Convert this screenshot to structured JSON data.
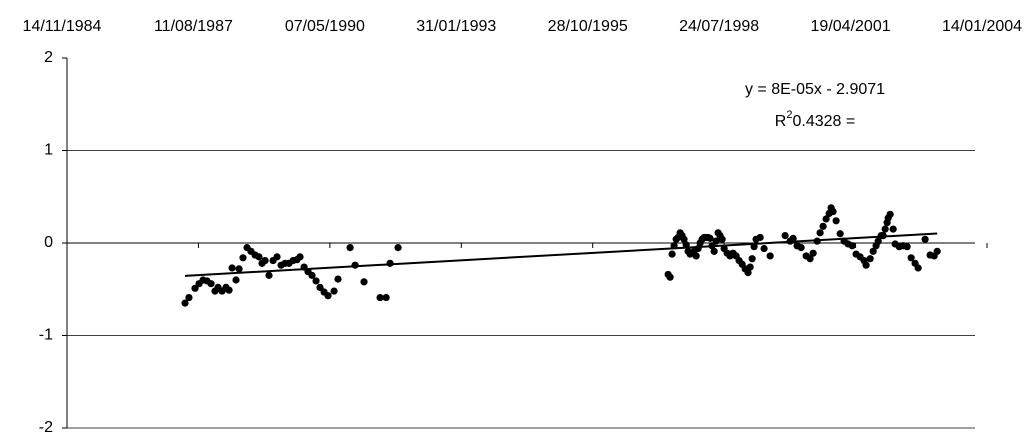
{
  "chart_data": {
    "type": "scatter",
    "color": "#000000",
    "xlim": [
      31000,
      38000
    ],
    "xticks": [
      {
        "value": 31000,
        "label": "14/11/1984"
      },
      {
        "value": 32000,
        "label": "11/08/1987"
      },
      {
        "value": 33000,
        "label": "07/05/1990"
      },
      {
        "value": 34000,
        "label": "31/01/1993"
      },
      {
        "value": 35000,
        "label": "28/10/1995"
      },
      {
        "value": 36000,
        "label": "24/07/1998"
      },
      {
        "value": 37000,
        "label": "19/04/2001"
      },
      {
        "value": 38000,
        "label": "14/01/2004"
      }
    ],
    "ylim": [
      -2,
      2
    ],
    "yticks": [
      -2,
      -1,
      0,
      1,
      2
    ],
    "grid": true,
    "x": [
      31898,
      31928,
      31974,
      32005,
      32035,
      32065,
      32096,
      32126,
      32149,
      32180,
      32210,
      32233,
      32256,
      32286,
      32309,
      32339,
      32370,
      32400,
      32431,
      32461,
      32484,
      32507,
      32537,
      32568,
      32598,
      32629,
      32659,
      32689,
      32720,
      32750,
      32773,
      32804,
      32834,
      32864,
      32895,
      32925,
      32956,
      32986,
      33032,
      33062,
      33154,
      33192,
      33260,
      33382,
      33428,
      33458,
      33519,
      35574,
      35589,
      35604,
      35619,
      35635,
      35650,
      35665,
      35680,
      35695,
      35711,
      35726,
      35741,
      35771,
      35787,
      35802,
      35817,
      35832,
      35848,
      35863,
      35878,
      35893,
      35908,
      35924,
      35939,
      35954,
      35969,
      35985,
      36000,
      36023,
      36045,
      36068,
      36091,
      36114,
      36137,
      36160,
      36182,
      36198,
      36213,
      36228,
      36243,
      36274,
      36304,
      36350,
      36464,
      36502,
      36525,
      36555,
      36586,
      36624,
      36654,
      36677,
      36708,
      36730,
      36753,
      36776,
      36799,
      36814,
      36829,
      36852,
      36883,
      36913,
      36943,
      36974,
      37004,
      37035,
      37065,
      37080,
      37111,
      37134,
      37156,
      37172,
      37195,
      37210,
      37225,
      37240,
      37248,
      37263,
      37286,
      37301,
      37332,
      37362,
      37392,
      37423,
      37453,
      37476,
      37529,
      37567,
      37598,
      37621
    ],
    "values": [
      -0.65,
      -0.59,
      -0.49,
      -0.44,
      -0.4,
      -0.41,
      -0.44,
      -0.52,
      -0.48,
      -0.52,
      -0.48,
      -0.51,
      -0.27,
      -0.4,
      -0.28,
      -0.16,
      -0.05,
      -0.09,
      -0.13,
      -0.15,
      -0.22,
      -0.19,
      -0.35,
      -0.19,
      -0.15,
      -0.24,
      -0.22,
      -0.22,
      -0.19,
      -0.18,
      -0.15,
      -0.26,
      -0.31,
      -0.35,
      -0.41,
      -0.48,
      -0.53,
      -0.57,
      -0.52,
      -0.39,
      -0.05,
      -0.24,
      -0.42,
      -0.59,
      -0.59,
      -0.22,
      -0.05,
      -0.34,
      -0.37,
      -0.12,
      -0.03,
      0.04,
      0.06,
      0.11,
      0.08,
      0.04,
      -0.02,
      -0.09,
      -0.12,
      -0.09,
      -0.14,
      -0.06,
      0,
      0.04,
      0.06,
      0.06,
      0.06,
      0.05,
      -0.03,
      -0.09,
      0.02,
      0.11,
      0.08,
      0.04,
      -0.06,
      -0.11,
      -0.14,
      -0.11,
      -0.14,
      -0.19,
      -0.23,
      -0.28,
      -0.32,
      -0.26,
      -0.17,
      -0.04,
      0.04,
      0.06,
      -0.06,
      -0.14,
      0.08,
      0.02,
      0.05,
      -0.03,
      -0.05,
      -0.14,
      -0.17,
      -0.11,
      0.02,
      0.11,
      0.18,
      0.26,
      0.32,
      0.38,
      0.34,
      0.24,
      0.1,
      0.02,
      -0.01,
      -0.03,
      -0.12,
      -0.15,
      -0.19,
      -0.24,
      -0.17,
      -0.09,
      -0.03,
      0.02,
      0.08,
      0.08,
      0.15,
      0.22,
      0.27,
      0.31,
      0.15,
      -0.01,
      -0.04,
      -0.03,
      -0.04,
      -0.16,
      -0.22,
      -0.27,
      0.04,
      -0.13,
      -0.14,
      -0.09
    ],
    "trendline": {
      "slope": 8e-05,
      "intercept": -2.9071,
      "equation": "y = 8E-05x - 2.9071",
      "r2_symbol": "R",
      "r2_superscript": "2",
      "r2_text": "0.4328 ="
    }
  }
}
